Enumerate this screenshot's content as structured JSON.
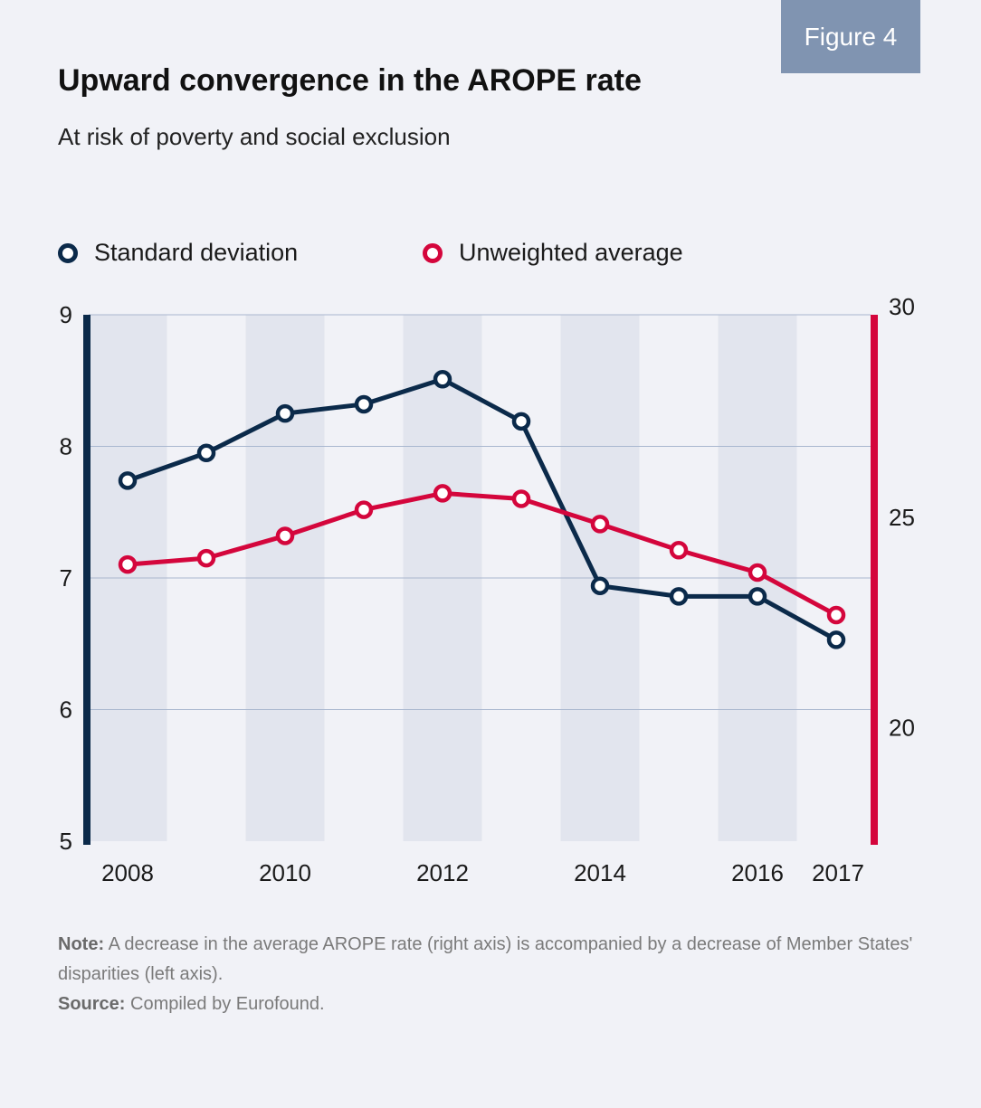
{
  "badge": "Figure 4",
  "title": "Upward convergence in the AROPE rate",
  "subtitle": "At risk of poverty and social exclusion",
  "note_label": "Note:",
  "note_text": "A decrease in the average AROPE rate (right axis) is accompanied by a decrease of Member States' disparities (left axis).",
  "source_label": "Source:",
  "source_text": "Compiled by Eurofound.",
  "chart_data": {
    "type": "line",
    "title": "Upward convergence in the AROPE rate",
    "subtitle": "At risk of poverty and social exclusion",
    "x": [
      2008,
      2009,
      2010,
      2011,
      2012,
      2013,
      2014,
      2015,
      2016,
      2017
    ],
    "x_tick_labels": [
      "2008",
      "2010",
      "2012",
      "2014",
      "2016",
      "2017"
    ],
    "left_axis": {
      "ylim": [
        5,
        9
      ],
      "ticks": [
        "5",
        "6",
        "7",
        "8",
        "9"
      ],
      "color": "#0b2a4a"
    },
    "right_axis": {
      "ylim": [
        17.5,
        30
      ],
      "ticks": [
        "20",
        "25",
        "30"
      ],
      "color": "#d4063c"
    },
    "legend_placement": "top-left",
    "grid": true,
    "series": [
      {
        "name": "Standard deviation",
        "axis": "left",
        "color": "#0b2a4a",
        "values": [
          7.74,
          7.95,
          8.25,
          8.32,
          8.51,
          8.19,
          6.94,
          6.86,
          6.86,
          6.53
        ]
      },
      {
        "name": "Unweighted average",
        "axis": "right",
        "color": "#d4063c",
        "values": [
          24.07,
          24.22,
          24.75,
          25.37,
          25.76,
          25.63,
          25.03,
          24.41,
          23.88,
          22.87
        ]
      }
    ]
  }
}
